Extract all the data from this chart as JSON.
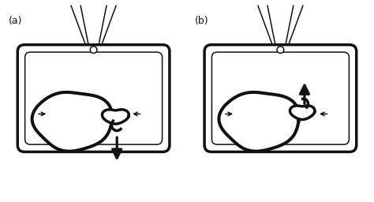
{
  "fig_width": 4.74,
  "fig_height": 2.56,
  "dpi": 100,
  "bg_color": "#ffffff",
  "line_color": "#111111",
  "label_a": "(a)",
  "label_b": "(b)",
  "label_fontsize": 9,
  "lw_thick": 2.5,
  "lw_thin": 1.1,
  "lw_arrow": 2.3,
  "arrow_mutation_scale": 20
}
